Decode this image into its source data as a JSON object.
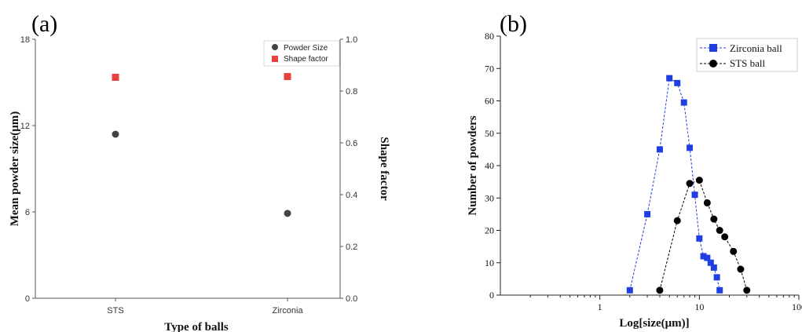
{
  "chart_data": [
    {
      "panel_label": "(a)",
      "type": "scatter",
      "categories": [
        "STS",
        "Zirconia"
      ],
      "xlabel": "Type of balls",
      "ylabel": "Mean powder size(μm)",
      "ylim": [
        0,
        18
      ],
      "yticks": [
        "0",
        "6",
        "12",
        "18"
      ],
      "y2label": "Shape factor",
      "y2lim": [
        0.0,
        1.0
      ],
      "y2ticks": [
        "0.0",
        "0.2",
        "0.4",
        "0.6",
        "0.8",
        "1.0"
      ],
      "series": [
        {
          "name": "Powder Size",
          "axis": "left",
          "marker": "circle",
          "color": "#444444",
          "values": [
            11.4,
            5.9
          ]
        },
        {
          "name": "Shape factor",
          "axis": "right",
          "marker": "square",
          "color": "#e8413f",
          "values": [
            0.853,
            0.856
          ]
        }
      ],
      "legend": "top-right",
      "grid": false
    },
    {
      "panel_label": "(b)",
      "type": "line",
      "xlabel": "Log[size(μm)]",
      "ylabel": "Number of powders",
      "xscale": "log",
      "xlim": [
        0.1,
        100
      ],
      "xticks": [
        "1",
        "10",
        "100"
      ],
      "ylim": [
        0,
        80
      ],
      "yticks": [
        "0",
        "10",
        "20",
        "30",
        "40",
        "50",
        "60",
        "70",
        "80"
      ],
      "series": [
        {
          "name": "Zirconia ball",
          "marker": "square",
          "color": "#1f3fe0",
          "x": [
            2,
            3,
            4,
            5,
            6,
            7,
            8,
            9,
            10,
            11,
            12,
            13,
            14,
            15,
            16
          ],
          "y": [
            1.5,
            25,
            45,
            67,
            65.5,
            59.5,
            45.5,
            31,
            17.5,
            12,
            11.5,
            10,
            8.5,
            5.5,
            1.5
          ]
        },
        {
          "name": "STS ball",
          "marker": "circle",
          "color": "#000000",
          "x": [
            4,
            6,
            8,
            10,
            12,
            14,
            16,
            18,
            22,
            26,
            30
          ],
          "y": [
            1.5,
            23,
            34.5,
            35.5,
            28.5,
            23.5,
            20,
            18,
            13.5,
            8,
            1.5
          ]
        }
      ],
      "legend": "top-right",
      "grid": false
    }
  ]
}
